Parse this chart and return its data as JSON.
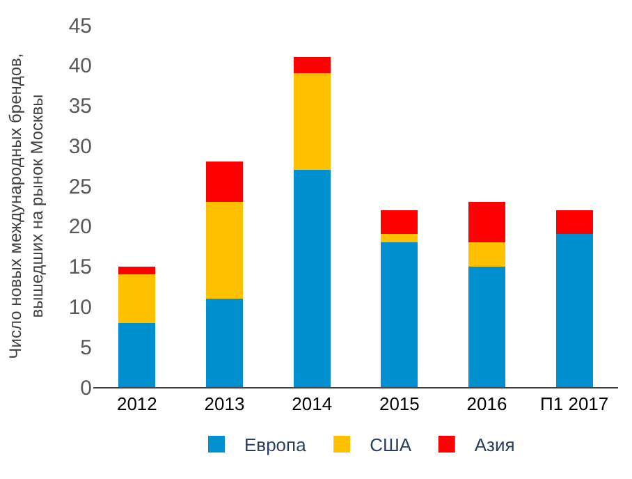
{
  "chart_data": {
    "type": "bar",
    "stacked": true,
    "ylabel": "Число новых международных брендов,\nвышедших на рынок Москвы",
    "categories": [
      "2012",
      "2013",
      "2014",
      "2015",
      "2016",
      "П1 2017"
    ],
    "series": [
      {
        "name": "Европа",
        "color": "#0090cf",
        "values": [
          8,
          11,
          27,
          18,
          15,
          19
        ]
      },
      {
        "name": "США",
        "color": "#ffc000",
        "values": [
          6,
          12,
          12,
          1,
          3,
          0
        ]
      },
      {
        "name": "Азия",
        "color": "#ff0000",
        "values": [
          1,
          5,
          2,
          3,
          5,
          3
        ]
      }
    ],
    "ylim": [
      0,
      45
    ],
    "yticks": [
      0,
      5,
      10,
      15,
      20,
      25,
      30,
      35,
      40,
      45
    ],
    "legend": "bottom"
  }
}
